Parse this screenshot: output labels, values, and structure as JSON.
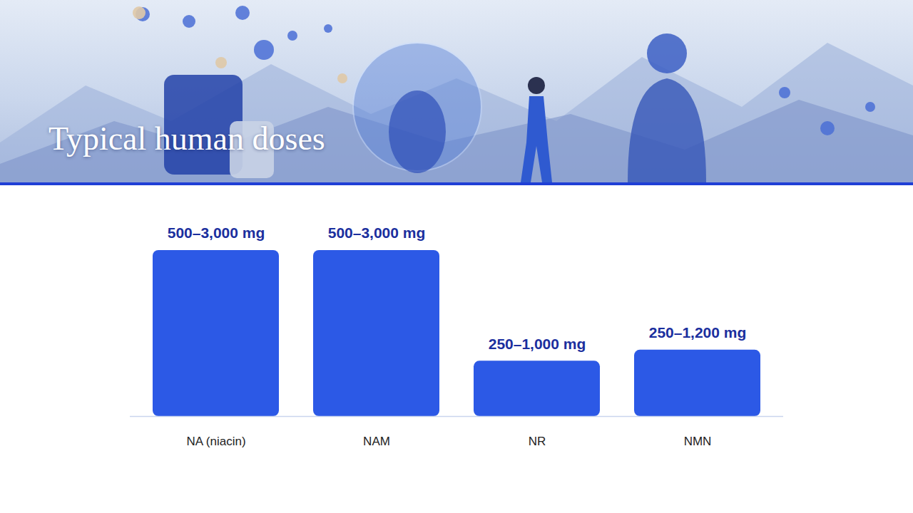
{
  "chart_data": {
    "type": "bar",
    "title": "Typical human doses",
    "categories": [
      "NA (niacin)",
      "NAM",
      "NR",
      "NMN"
    ],
    "values": [
      3000,
      3000,
      1000,
      1200
    ],
    "value_labels": [
      "500–3,000 mg",
      "500–3,000 mg",
      "250–1,000 mg",
      "250–1,200 mg"
    ],
    "data_labels": true,
    "tick_labels": "x",
    "grid": false,
    "color": "#2c59e6"
  }
}
